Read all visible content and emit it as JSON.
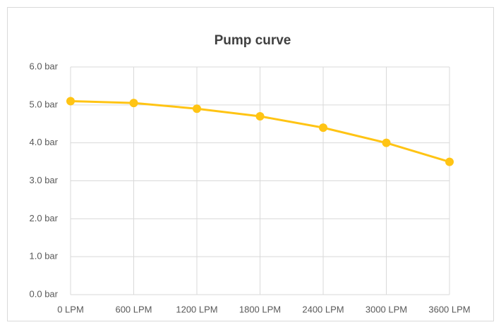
{
  "chart_data": {
    "type": "line",
    "title": "Pump curve",
    "x": [
      0,
      600,
      1200,
      1800,
      2400,
      3000,
      3600
    ],
    "series": [
      {
        "color": "#ffc414",
        "values": [
          5.1,
          5.05,
          4.9,
          4.7,
          4.4,
          4.0,
          3.5
        ]
      }
    ],
    "xlim": [
      0,
      3600
    ],
    "xticks": [
      {
        "value": 0,
        "label": "0 LPM"
      },
      {
        "value": 600,
        "label": "600 LPM"
      },
      {
        "value": 1200,
        "label": "1200 LPM"
      },
      {
        "value": 1800,
        "label": "1800 LPM"
      },
      {
        "value": 2400,
        "label": "2400 LPM"
      },
      {
        "value": 3000,
        "label": "3000 LPM"
      },
      {
        "value": 3600,
        "label": "3600 LPM"
      }
    ],
    "ylim": [
      0,
      6
    ],
    "yticks": [
      {
        "value": 0,
        "label": "0.0 bar"
      },
      {
        "value": 1,
        "label": "1.0 bar"
      },
      {
        "value": 2,
        "label": "2.0 bar"
      },
      {
        "value": 3,
        "label": "3.0 bar"
      },
      {
        "value": 4,
        "label": "4.0 bar"
      },
      {
        "value": 5,
        "label": "5.0 bar"
      },
      {
        "value": 6,
        "label": "6.0 bar"
      }
    ],
    "grid": true
  }
}
